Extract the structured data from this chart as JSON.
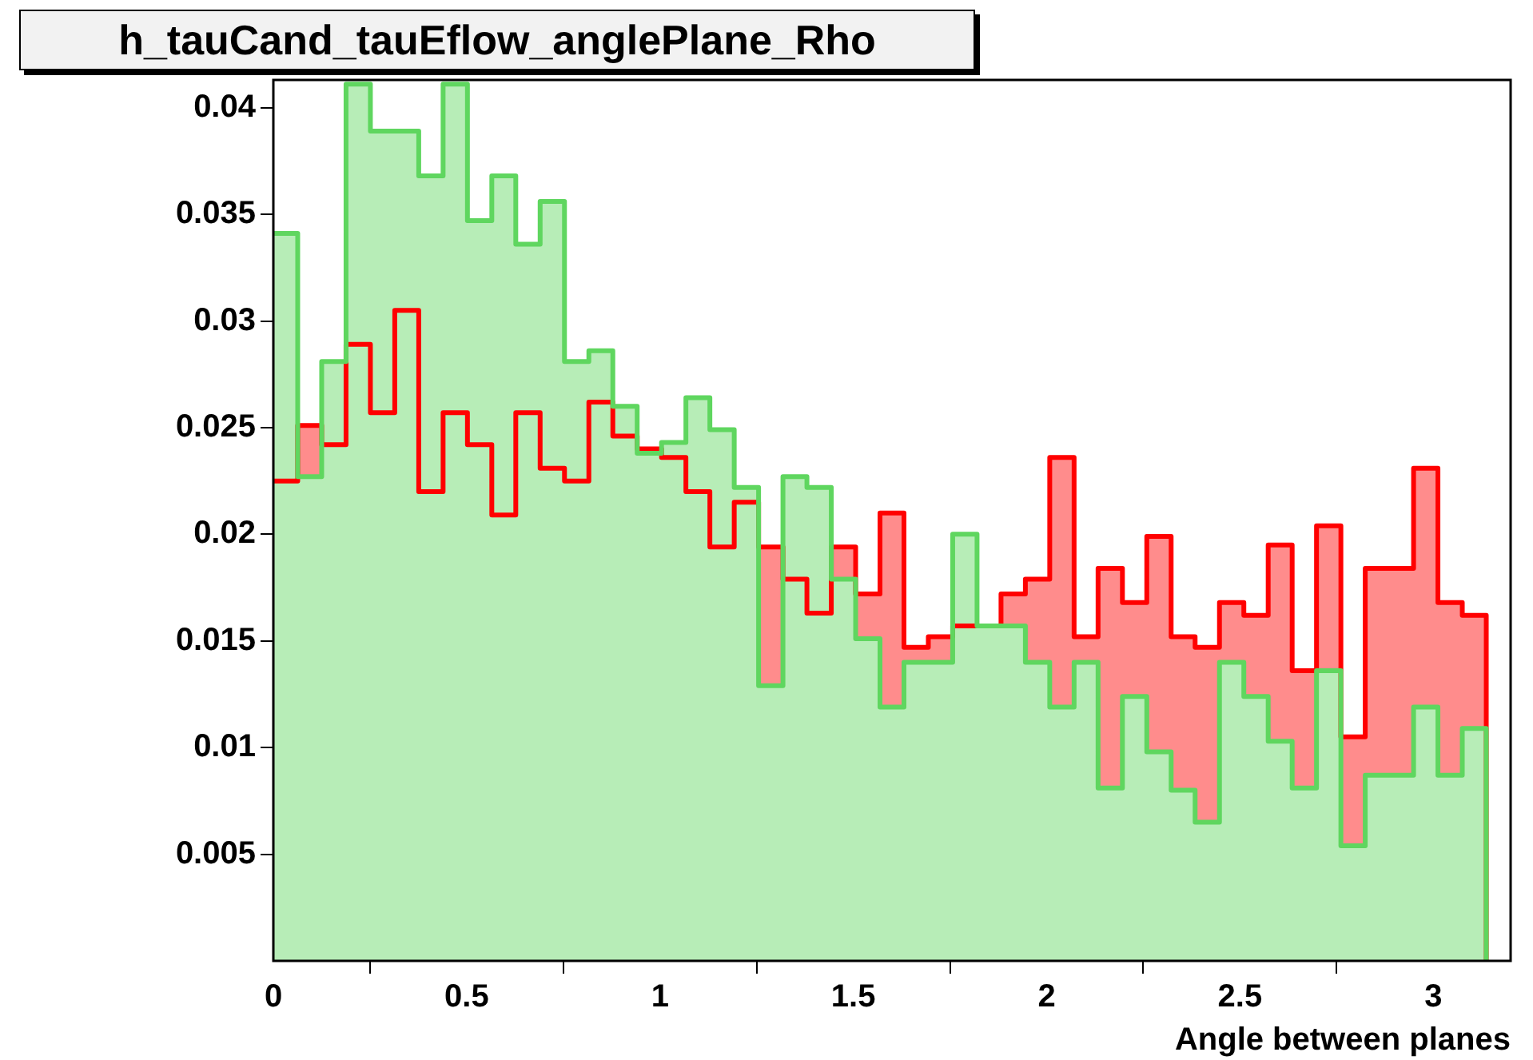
{
  "chart_data": {
    "type": "step",
    "title": "h_tauCand_tauEflow_anglePlane_Rho",
    "xlabel": "Angle between planes",
    "x": [
      0,
      0.063,
      0.125,
      0.188,
      0.251,
      0.314,
      0.376,
      0.439,
      0.502,
      0.565,
      0.627,
      0.69,
      0.753,
      0.816,
      0.878,
      0.941,
      1.004,
      1.067,
      1.129,
      1.192,
      1.255,
      1.318,
      1.38,
      1.443,
      1.506,
      1.569,
      1.631,
      1.694,
      1.757,
      1.82,
      1.882,
      1.945,
      2.008,
      2.071,
      2.133,
      2.196,
      2.259,
      2.322,
      2.384,
      2.447,
      2.51,
      2.573,
      2.635,
      2.698,
      2.761,
      2.824,
      2.886,
      2.949,
      3.012,
      3.075,
      3.137
    ],
    "series": [
      {
        "color": "#ff0000",
        "values": [
          0.0225,
          0.0251,
          0.0242,
          0.0289,
          0.0257,
          0.0305,
          0.022,
          0.0257,
          0.0242,
          0.0209,
          0.0257,
          0.0231,
          0.0225,
          0.0262,
          0.0246,
          0.024,
          0.0236,
          0.022,
          0.0194,
          0.0215,
          0.0194,
          0.0179,
          0.0163,
          0.0194,
          0.0172,
          0.021,
          0.0147,
          0.0152,
          0.0157,
          0.0157,
          0.0172,
          0.0179,
          0.0236,
          0.0152,
          0.0184,
          0.0168,
          0.0199,
          0.0152,
          0.0147,
          0.0168,
          0.0162,
          0.0195,
          0.0136,
          0.0204,
          0.0105,
          0.0184,
          0.0184,
          0.0231,
          0.0168,
          0.0162,
          0
        ]
      },
      {
        "color": "#5fd65f",
        "values": [
          0.0341,
          0.0227,
          0.0281,
          0.0411,
          0.0389,
          0.0389,
          0.0368,
          0.0411,
          0.0347,
          0.0368,
          0.0336,
          0.0356,
          0.0281,
          0.0286,
          0.026,
          0.0238,
          0.0243,
          0.0264,
          0.0249,
          0.0222,
          0.0129,
          0.0227,
          0.0222,
          0.0179,
          0.0151,
          0.0119,
          0.014,
          0.014,
          0.02,
          0.0157,
          0.0157,
          0.014,
          0.0119,
          0.014,
          0.0081,
          0.0124,
          0.0098,
          0.008,
          0.0065,
          0.014,
          0.0124,
          0.0103,
          0.0081,
          0.0136,
          0.0054,
          0.0087,
          0.0087,
          0.0119,
          0.0087,
          0.0109,
          0
        ]
      }
    ],
    "xlim": [
      0,
      3.2
    ],
    "xticks": [
      0,
      0.5,
      1,
      1.5,
      2,
      2.5,
      3
    ],
    "ylim": [
      0,
      0.0413
    ],
    "yticks": [
      0.005,
      0.01,
      0.015,
      0.02,
      0.025,
      0.03,
      0.035,
      0.04
    ],
    "grid": false,
    "legend": false
  }
}
